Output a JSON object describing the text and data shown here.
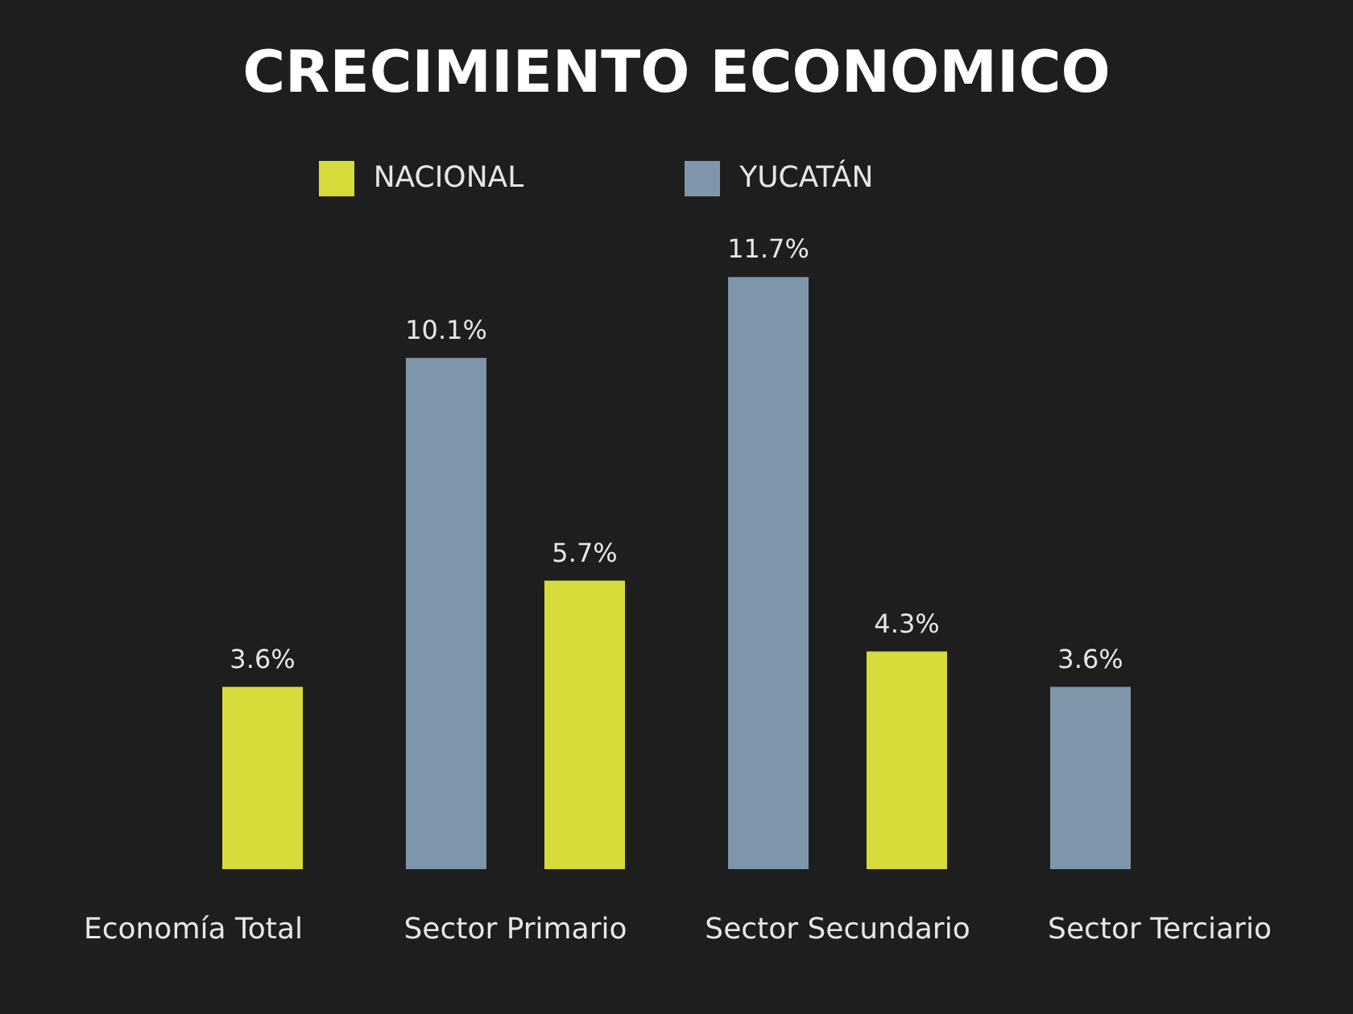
{
  "chart_data": {
    "type": "bar",
    "title": "CRECIMIENTO ECONOMICO",
    "categories": [
      "Economía Total",
      "Sector Primario",
      "Sector Secundario",
      "Sector Terciario"
    ],
    "series": [
      {
        "name": "YUCATÁN",
        "color": "#7f95aa",
        "values": [
          null,
          10.1,
          11.7,
          3.6
        ],
        "value_labels": [
          null,
          "10.1%",
          "11.7%",
          "3.6%"
        ]
      },
      {
        "name": "NACIONAL",
        "color": "#d6dc3a",
        "values": [
          3.6,
          5.7,
          4.3,
          null
        ],
        "value_labels": [
          "3.6%",
          "5.7%",
          "4.3%",
          null
        ]
      }
    ],
    "legend": "top",
    "grid": false
  }
}
